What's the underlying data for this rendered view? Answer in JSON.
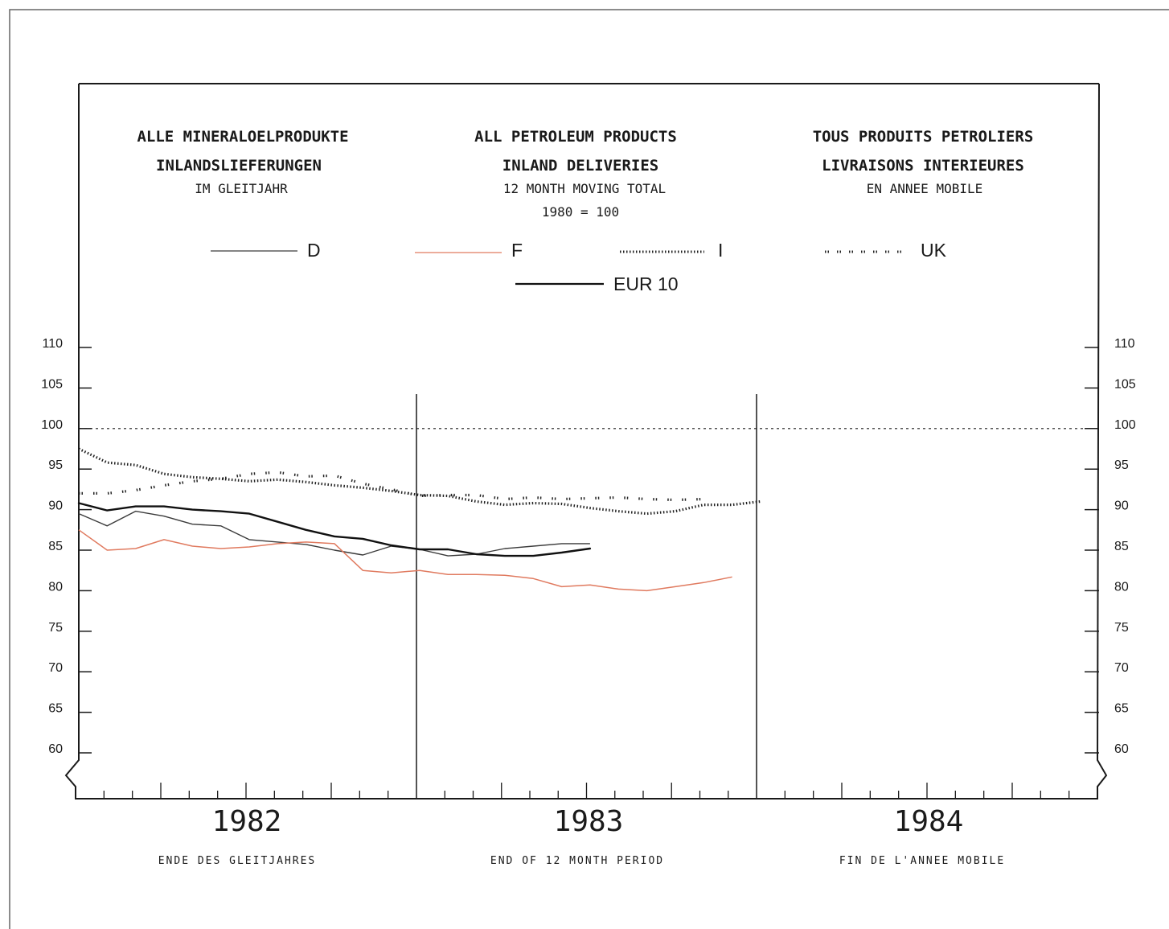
{
  "titles": {
    "de": {
      "line1": "ALLE MINERALOELPRODUKTE",
      "line2": "INLANDSLIEFERUNGEN",
      "line3": "IM GLEITJAHR"
    },
    "en": {
      "line1": "ALL PETROLEUM PRODUCTS",
      "line2": "INLAND DELIVERIES",
      "line3": "12 MONTH MOVING TOTAL",
      "line4": "1980 = 100"
    },
    "fr": {
      "line1": "TOUS PRODUITS PETROLIERS",
      "line2": "LIVRAISONS INTERIEURES",
      "line3": "EN ANNEE MOBILE"
    }
  },
  "footer": {
    "de": "ENDE DES GLEITJAHRES",
    "en": "END OF 12 MONTH PERIOD",
    "fr": "FIN DE L'ANNEE MOBILE"
  },
  "colors": {
    "D": "#3a3a3a",
    "F": "#e07a5f",
    "I": "#222222",
    "UK": "#222222",
    "EUR10": "#111111"
  },
  "chart_data": {
    "type": "line",
    "ylim": [
      57,
      113
    ],
    "yticks": [
      "110",
      "105",
      "100",
      "95",
      "90",
      "85",
      "80",
      "75",
      "70",
      "65",
      "60"
    ],
    "reference_line": 100,
    "x_labels": [
      "1982",
      "1983",
      "1984"
    ],
    "series": [
      {
        "name": "D",
        "style": "thin",
        "values": [
          89.5,
          88.0,
          89.8,
          89.2,
          88.2,
          88.0,
          86.3,
          86.0,
          85.7,
          85.0,
          84.4,
          85.5,
          85.1,
          84.3,
          84.5,
          85.2,
          85.5,
          85.8,
          85.8
        ]
      },
      {
        "name": "F",
        "style": "orange",
        "values": [
          87.5,
          85.0,
          85.2,
          86.3,
          85.5,
          85.2,
          85.4,
          85.8,
          86.0,
          85.8,
          82.5,
          82.2,
          82.5,
          82.0,
          82.0,
          81.9,
          81.5,
          80.5,
          80.7,
          80.2,
          80.0,
          80.5,
          81.0,
          81.7
        ]
      },
      {
        "name": "I",
        "style": "dense-dots",
        "values": [
          97.5,
          95.8,
          95.5,
          94.4,
          94.0,
          93.8,
          93.5,
          93.7,
          93.4,
          93.0,
          92.7,
          92.3,
          91.8,
          91.7,
          91.0,
          90.6,
          90.8,
          90.7,
          90.2,
          89.8,
          89.5,
          89.8,
          90.6,
          90.6,
          91.0
        ]
      },
      {
        "name": "UK",
        "style": "sparse-dots",
        "values": [
          92.0,
          92.0,
          92.4,
          93.0,
          93.5,
          93.8,
          94.4,
          94.6,
          94.1,
          94.2,
          93.2,
          92.5,
          91.7,
          91.8,
          91.8,
          91.3,
          91.5,
          91.3,
          91.4,
          91.5,
          91.3,
          91.2,
          91.3
        ]
      },
      {
        "name": "EUR 10",
        "style": "bold",
        "values": [
          90.8,
          89.9,
          90.4,
          90.4,
          90.0,
          89.8,
          89.5,
          88.5,
          87.5,
          86.7,
          86.4,
          85.6,
          85.1,
          85.1,
          84.5,
          84.3,
          84.3,
          84.7,
          85.2
        ]
      }
    ]
  }
}
